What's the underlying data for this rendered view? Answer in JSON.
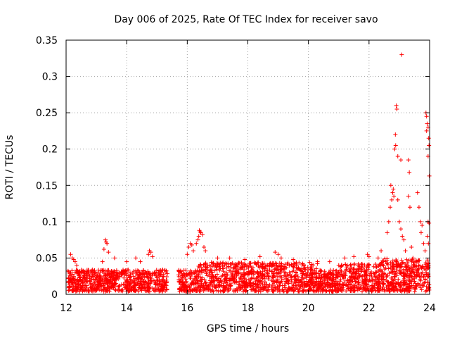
{
  "chart_data": {
    "type": "scatter",
    "title": "Day 006 of 2025, Rate Of TEC Index for receiver savo",
    "xlabel": "GPS time / hours",
    "ylabel": "ROTI / TECUs",
    "xlim": [
      12,
      24
    ],
    "ylim": [
      0,
      0.35
    ],
    "x_ticks": [
      12,
      14,
      16,
      18,
      20,
      22,
      24
    ],
    "y_ticks": [
      0,
      0.05,
      0.1,
      0.15,
      0.2,
      0.25,
      0.3,
      0.35
    ],
    "x_tick_labels": [
      "12",
      "14",
      "16",
      "18",
      "20",
      "22",
      "24"
    ],
    "y_tick_labels": [
      "0",
      "0.05",
      "0.1",
      "0.15",
      "0.2",
      "0.25",
      "0.3",
      "0.35"
    ],
    "grid": true,
    "marker": "+",
    "series_color": "#ff0000",
    "data_gap_hours": [
      15.35,
      15.7
    ],
    "series": [
      {
        "name": "ROTI",
        "description_points": "dense cloud of points 0-0.04 TECU across 12-24 h with excursions",
        "points": [
          [
            12.15,
            0.055
          ],
          [
            12.2,
            0.05
          ],
          [
            12.25,
            0.048
          ],
          [
            12.3,
            0.045
          ],
          [
            12.35,
            0.04
          ],
          [
            13.3,
            0.075
          ],
          [
            13.32,
            0.072
          ],
          [
            13.35,
            0.07
          ],
          [
            13.25,
            0.062
          ],
          [
            13.4,
            0.058
          ],
          [
            13.2,
            0.045
          ],
          [
            13.6,
            0.05
          ],
          [
            14.0,
            0.045
          ],
          [
            14.3,
            0.05
          ],
          [
            14.45,
            0.045
          ],
          [
            14.75,
            0.06
          ],
          [
            14.8,
            0.058
          ],
          [
            14.72,
            0.055
          ],
          [
            14.85,
            0.052
          ],
          [
            16.05,
            0.065
          ],
          [
            16.1,
            0.07
          ],
          [
            16.15,
            0.068
          ],
          [
            16.2,
            0.06
          ],
          [
            16.0,
            0.055
          ],
          [
            16.4,
            0.088
          ],
          [
            16.42,
            0.086
          ],
          [
            16.45,
            0.085
          ],
          [
            16.5,
            0.082
          ],
          [
            16.38,
            0.08
          ],
          [
            16.35,
            0.075
          ],
          [
            16.3,
            0.07
          ],
          [
            16.55,
            0.065
          ],
          [
            16.6,
            0.06
          ],
          [
            17.0,
            0.05
          ],
          [
            17.4,
            0.05
          ],
          [
            17.9,
            0.048
          ],
          [
            18.4,
            0.052
          ],
          [
            18.9,
            0.058
          ],
          [
            19.0,
            0.055
          ],
          [
            19.1,
            0.05
          ],
          [
            19.5,
            0.048
          ],
          [
            20.3,
            0.045
          ],
          [
            20.7,
            0.045
          ],
          [
            21.2,
            0.05
          ],
          [
            21.5,
            0.052
          ],
          [
            21.95,
            0.055
          ],
          [
            22.0,
            0.052
          ],
          [
            22.3,
            0.05
          ],
          [
            22.4,
            0.06
          ],
          [
            22.6,
            0.085
          ],
          [
            22.65,
            0.1
          ],
          [
            22.7,
            0.12
          ],
          [
            22.75,
            0.13
          ],
          [
            22.72,
            0.15
          ],
          [
            22.78,
            0.14
          ],
          [
            22.8,
            0.145
          ],
          [
            22.82,
            0.135
          ],
          [
            22.85,
            0.2
          ],
          [
            22.88,
            0.205
          ],
          [
            22.87,
            0.22
          ],
          [
            22.9,
            0.26
          ],
          [
            22.92,
            0.255
          ],
          [
            22.95,
            0.13
          ],
          [
            23.0,
            0.1
          ],
          [
            23.05,
            0.09
          ],
          [
            22.95,
            0.19
          ],
          [
            23.05,
            0.185
          ],
          [
            23.1,
            0.08
          ],
          [
            23.15,
            0.075
          ],
          [
            23.2,
            0.06
          ],
          [
            23.08,
            0.33
          ],
          [
            23.3,
            0.185
          ],
          [
            23.33,
            0.168
          ],
          [
            23.3,
            0.135
          ],
          [
            23.35,
            0.12
          ],
          [
            23.4,
            0.065
          ],
          [
            23.45,
            0.05
          ],
          [
            23.6,
            0.14
          ],
          [
            23.65,
            0.12
          ],
          [
            23.7,
            0.1
          ],
          [
            23.75,
            0.095
          ],
          [
            23.72,
            0.085
          ],
          [
            23.8,
            0.07
          ],
          [
            23.85,
            0.06
          ],
          [
            23.88,
            0.25
          ],
          [
            23.9,
            0.245
          ],
          [
            23.92,
            0.235
          ],
          [
            23.95,
            0.23
          ],
          [
            23.9,
            0.225
          ],
          [
            23.97,
            0.215
          ],
          [
            23.98,
            0.205
          ],
          [
            23.95,
            0.19
          ],
          [
            23.99,
            0.163
          ],
          [
            23.95,
            0.1
          ],
          [
            23.98,
            0.098
          ],
          [
            23.93,
            0.08
          ],
          [
            23.96,
            0.07
          ]
        ]
      }
    ]
  }
}
